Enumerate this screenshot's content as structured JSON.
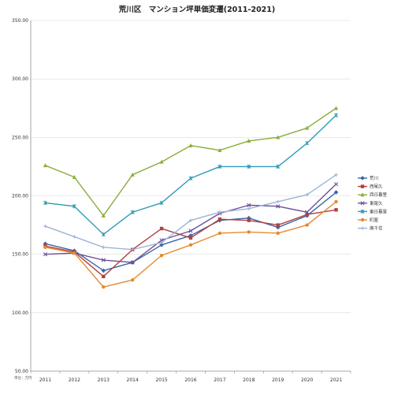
{
  "chart_data": {
    "type": "line",
    "title": "荒川区　マンション坪単価変遷(2011-2021)",
    "unit_label": "単位：万円",
    "categories": [
      "2011",
      "2012",
      "2013",
      "2014",
      "2015",
      "2016",
      "2017",
      "2018",
      "2019",
      "2020",
      "2021"
    ],
    "ylim": [
      50,
      350
    ],
    "y_ticks": [
      "50.00",
      "100.00",
      "150.00",
      "200.00",
      "250.00",
      "300.00",
      "350.00"
    ],
    "grid": true,
    "legend_position": "right",
    "series": [
      {
        "name": "荒川",
        "color": "#3a66a8",
        "marker": "diamond",
        "values": [
          159,
          153,
          136,
          143,
          158,
          166,
          179,
          181,
          173,
          183,
          203
        ]
      },
      {
        "name": "西尾久",
        "color": "#b0413e",
        "marker": "square",
        "values": [
          157,
          152,
          131,
          154,
          172,
          164,
          180,
          179,
          175,
          184,
          188
        ]
      },
      {
        "name": "西日暮里",
        "color": "#8aad3c",
        "marker": "triangle",
        "values": [
          226,
          216,
          183,
          218,
          229,
          243,
          239,
          247,
          250,
          258,
          275
        ]
      },
      {
        "name": "東尾久",
        "color": "#6e4f97",
        "marker": "x",
        "values": [
          150,
          151,
          145,
          143,
          162,
          170,
          185,
          192,
          191,
          186,
          210
        ]
      },
      {
        "name": "東日暮里",
        "color": "#2f9ab5",
        "marker": "star",
        "values": [
          194,
          191,
          167,
          186,
          194,
          215,
          225,
          225,
          225,
          245,
          269
        ]
      },
      {
        "name": "町屋",
        "color": "#e68a2e",
        "marker": "circle",
        "values": [
          156,
          151,
          122,
          128,
          149,
          158,
          168,
          169,
          168,
          175,
          195
        ]
      },
      {
        "name": "南千住",
        "color": "#9db3d6",
        "marker": "plus",
        "values": [
          174,
          165,
          156,
          154,
          160,
          179,
          186,
          189,
          195,
          201,
          218
        ]
      }
    ]
  }
}
